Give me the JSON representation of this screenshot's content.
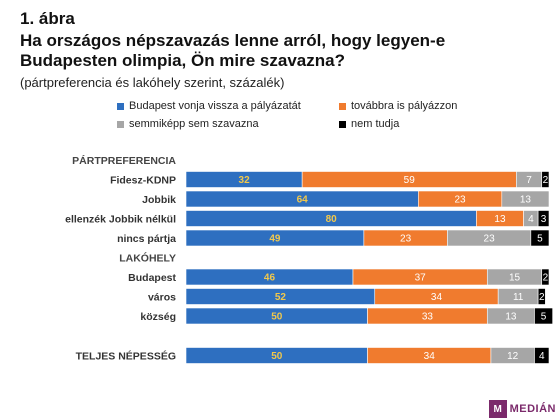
{
  "figure_label": "1. ábra",
  "title": "Ha országos népszavazás lenne arról, hogy legyen-e Budapesten olimpia, Ön mire szavazna?",
  "subtitle": "(pártpreferencia és lakóhely szerint, százalék)",
  "logo": "MEDIÁN",
  "chart_data": {
    "type": "bar",
    "orientation": "horizontal",
    "stacked": true,
    "normalized_percent": true,
    "legend_position": "top",
    "series": [
      {
        "name": "Budapest vonja vissza a pályázatát",
        "color": "#2e6fc0",
        "label_color": "#f2c84b"
      },
      {
        "name": "továbbra is pályázzon",
        "color": "#f07b2e",
        "label_color": "#ffffff"
      },
      {
        "name": "semmiképp sem szavazna",
        "color": "#a6a6a6",
        "label_color": "#ffffff"
      },
      {
        "name": "nem tudja",
        "color": "#000000",
        "label_color": "#ffffff"
      }
    ],
    "groups": [
      {
        "label": "PÁRTPREFERENCIA",
        "rows": [
          {
            "category": "Fidesz-KDNP",
            "values": [
              32,
              59,
              7,
              2
            ]
          },
          {
            "category": "Jobbik",
            "values": [
              64,
              23,
              13,
              null
            ]
          },
          {
            "category": "ellenzék Jobbik nélkül",
            "values": [
              80,
              13,
              4,
              3
            ]
          },
          {
            "category": "nincs pártja",
            "values": [
              49,
              23,
              23,
              5
            ]
          }
        ]
      },
      {
        "label": "LAKÓHELY",
        "rows": [
          {
            "category": "Budapest",
            "values": [
              46,
              37,
              15,
              2
            ]
          },
          {
            "category": "város",
            "values": [
              52,
              34,
              11,
              2
            ]
          },
          {
            "category": "község",
            "values": [
              50,
              33,
              13,
              5
            ]
          }
        ]
      },
      {
        "label": "",
        "rows": [
          {
            "category": "TELJES NÉPESSÉG",
            "values": [
              50,
              34,
              12,
              4
            ]
          }
        ]
      }
    ]
  }
}
